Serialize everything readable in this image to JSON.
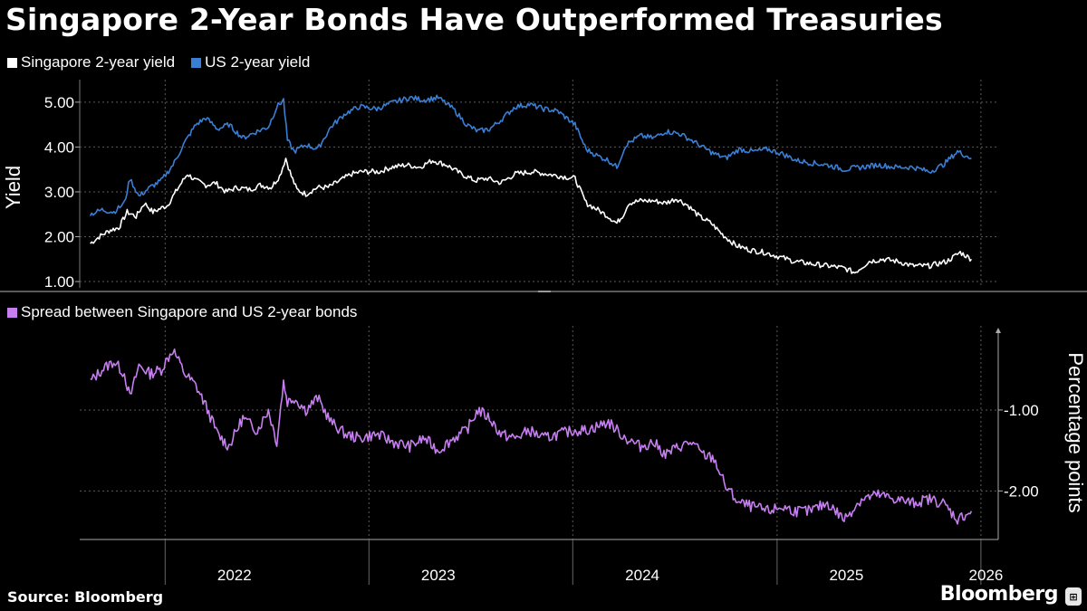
{
  "title": "Singapore 2-Year Bonds Have Outperformed Treasuries",
  "source": "Source: Bloomberg",
  "brand": "Bloomberg",
  "colors": {
    "background": "#000000",
    "singapore": "#ffffff",
    "us": "#3a7fd6",
    "spread": "#c77ef0",
    "grid": "#555555"
  },
  "chart_data": [
    {
      "type": "line",
      "ylabel": "Yield",
      "ylim": [
        0.9,
        5.3
      ],
      "yticks": [
        "5.00",
        "4.00",
        "3.00",
        "2.00",
        "1.00"
      ],
      "ytick_values": [
        5,
        4,
        3,
        2,
        1
      ],
      "grid": true,
      "legend_position": "top-left",
      "x_range": [
        "2021-08",
        "2026-02"
      ],
      "series": [
        {
          "name": "Singapore 2-year yield",
          "color": "#ffffff",
          "points": [
            [
              "2021-08-20",
              1.85
            ],
            [
              "2021-09-05",
              2.0
            ],
            [
              "2021-09-25",
              2.15
            ],
            [
              "2021-10-10",
              2.2
            ],
            [
              "2021-10-25",
              2.55
            ],
            [
              "2021-11-10",
              2.45
            ],
            [
              "2021-11-25",
              2.75
            ],
            [
              "2021-12-10",
              2.55
            ],
            [
              "2022-01-05",
              2.7
            ],
            [
              "2022-01-25",
              3.1
            ],
            [
              "2022-02-10",
              3.4
            ],
            [
              "2022-02-25",
              3.25
            ],
            [
              "2022-03-15",
              3.15
            ],
            [
              "2022-04-01",
              3.2
            ],
            [
              "2022-04-20",
              3.0
            ],
            [
              "2022-05-10",
              3.1
            ],
            [
              "2022-06-01",
              3.05
            ],
            [
              "2022-06-20",
              3.15
            ],
            [
              "2022-07-10",
              3.1
            ],
            [
              "2022-07-25",
              3.35
            ],
            [
              "2022-08-05",
              3.75
            ],
            [
              "2022-08-15",
              3.35
            ],
            [
              "2022-08-25",
              3.05
            ],
            [
              "2022-09-10",
              2.95
            ],
            [
              "2022-10-01",
              3.1
            ],
            [
              "2022-10-20",
              3.1
            ],
            [
              "2022-11-10",
              3.25
            ],
            [
              "2022-12-01",
              3.4
            ],
            [
              "2022-12-20",
              3.45
            ],
            [
              "2023-01-20",
              3.45
            ],
            [
              "2023-02-10",
              3.55
            ],
            [
              "2023-03-10",
              3.6
            ],
            [
              "2023-04-01",
              3.55
            ],
            [
              "2023-04-25",
              3.7
            ],
            [
              "2023-05-20",
              3.6
            ],
            [
              "2023-06-15",
              3.4
            ],
            [
              "2023-07-10",
              3.25
            ],
            [
              "2023-08-01",
              3.3
            ],
            [
              "2023-08-25",
              3.2
            ],
            [
              "2023-09-20",
              3.4
            ],
            [
              "2023-10-20",
              3.45
            ],
            [
              "2023-11-15",
              3.4
            ],
            [
              "2023-12-10",
              3.35
            ],
            [
              "2024-01-05",
              3.3
            ],
            [
              "2024-01-25",
              2.75
            ],
            [
              "2024-02-15",
              2.6
            ],
            [
              "2024-03-05",
              2.45
            ],
            [
              "2024-03-20",
              2.3
            ],
            [
              "2024-04-01",
              2.5
            ],
            [
              "2024-04-10",
              2.75
            ],
            [
              "2024-05-01",
              2.8
            ],
            [
              "2024-05-25",
              2.8
            ],
            [
              "2024-06-15",
              2.75
            ],
            [
              "2024-07-05",
              2.85
            ],
            [
              "2024-07-25",
              2.7
            ],
            [
              "2024-08-15",
              2.45
            ],
            [
              "2024-09-05",
              2.3
            ],
            [
              "2024-09-25",
              2.05
            ],
            [
              "2024-10-20",
              1.8
            ],
            [
              "2024-11-15",
              1.7
            ],
            [
              "2024-12-10",
              1.65
            ],
            [
              "2025-01-05",
              1.55
            ],
            [
              "2025-02-01",
              1.45
            ],
            [
              "2025-03-01",
              1.4
            ],
            [
              "2025-04-01",
              1.35
            ],
            [
              "2025-05-01",
              1.3
            ],
            [
              "2025-05-20",
              1.2
            ],
            [
              "2025-06-15",
              1.45
            ],
            [
              "2025-07-10",
              1.5
            ],
            [
              "2025-08-05",
              1.45
            ],
            [
              "2025-09-01",
              1.35
            ],
            [
              "2025-10-01",
              1.35
            ],
            [
              "2025-11-01",
              1.45
            ],
            [
              "2025-11-25",
              1.65
            ],
            [
              "2025-12-15",
              1.5
            ]
          ]
        },
        {
          "name": "US 2-year yield",
          "color": "#3a7fd6",
          "points": [
            [
              "2021-08-20",
              2.5
            ],
            [
              "2021-09-10",
              2.6
            ],
            [
              "2021-10-01",
              2.55
            ],
            [
              "2021-10-20",
              2.75
            ],
            [
              "2021-10-30",
              3.3
            ],
            [
              "2021-11-15",
              2.9
            ],
            [
              "2021-12-05",
              3.1
            ],
            [
              "2021-12-25",
              3.25
            ],
            [
              "2022-01-15",
              3.6
            ],
            [
              "2022-02-05",
              4.1
            ],
            [
              "2022-02-25",
              4.5
            ],
            [
              "2022-03-15",
              4.65
            ],
            [
              "2022-04-05",
              4.4
            ],
            [
              "2022-04-25",
              4.5
            ],
            [
              "2022-05-20",
              4.2
            ],
            [
              "2022-06-15",
              4.35
            ],
            [
              "2022-07-05",
              4.45
            ],
            [
              "2022-07-20",
              4.9
            ],
            [
              "2022-08-01",
              5.05
            ],
            [
              "2022-08-08",
              4.15
            ],
            [
              "2022-08-20",
              3.9
            ],
            [
              "2022-09-10",
              4.05
            ],
            [
              "2022-10-01",
              3.95
            ],
            [
              "2022-10-25",
              4.45
            ],
            [
              "2022-11-20",
              4.75
            ],
            [
              "2022-12-15",
              4.9
            ],
            [
              "2023-01-15",
              4.85
            ],
            [
              "2023-02-15",
              5.0
            ],
            [
              "2023-03-15",
              5.1
            ],
            [
              "2023-04-10",
              5.05
            ],
            [
              "2023-05-05",
              5.1
            ],
            [
              "2023-06-01",
              4.85
            ],
            [
              "2023-06-25",
              4.5
            ],
            [
              "2023-07-15",
              4.35
            ],
            [
              "2023-08-05",
              4.4
            ],
            [
              "2023-08-25",
              4.6
            ],
            [
              "2023-09-20",
              4.9
            ],
            [
              "2023-10-15",
              4.95
            ],
            [
              "2023-11-10",
              4.85
            ],
            [
              "2023-12-05",
              4.8
            ],
            [
              "2024-01-05",
              4.5
            ],
            [
              "2024-01-25",
              3.95
            ],
            [
              "2024-02-15",
              3.8
            ],
            [
              "2024-03-05",
              3.7
            ],
            [
              "2024-03-20",
              3.55
            ],
            [
              "2024-04-05",
              4.05
            ],
            [
              "2024-05-01",
              4.25
            ],
            [
              "2024-05-25",
              4.2
            ],
            [
              "2024-06-15",
              4.35
            ],
            [
              "2024-07-10",
              4.3
            ],
            [
              "2024-08-01",
              4.15
            ],
            [
              "2024-08-20",
              4.0
            ],
            [
              "2024-09-10",
              3.85
            ],
            [
              "2024-10-01",
              3.75
            ],
            [
              "2024-10-25",
              3.95
            ],
            [
              "2024-11-20",
              3.9
            ],
            [
              "2024-12-15",
              3.95
            ],
            [
              "2025-01-10",
              3.85
            ],
            [
              "2025-02-05",
              3.7
            ],
            [
              "2025-03-01",
              3.65
            ],
            [
              "2025-04-01",
              3.6
            ],
            [
              "2025-05-01",
              3.5
            ],
            [
              "2025-06-01",
              3.55
            ],
            [
              "2025-07-01",
              3.6
            ],
            [
              "2025-08-01",
              3.55
            ],
            [
              "2025-09-01",
              3.55
            ],
            [
              "2025-10-01",
              3.45
            ],
            [
              "2025-10-25",
              3.6
            ],
            [
              "2025-11-20",
              3.9
            ],
            [
              "2025-12-15",
              3.75
            ]
          ]
        }
      ]
    },
    {
      "type": "line",
      "ylabel": "Percentage points",
      "ylim": [
        -2.6,
        -0.05
      ],
      "yticks": [
        "-1.00",
        "-2.00"
      ],
      "ytick_values": [
        -1,
        -2
      ],
      "grid": true,
      "legend_position": "top-left",
      "x_range": [
        "2021-08",
        "2026-02"
      ],
      "xticks": [
        "2022",
        "2023",
        "2024",
        "2025",
        "2026"
      ],
      "series": [
        {
          "name": "Spread between Singapore and US 2-year bonds",
          "color": "#c77ef0",
          "points": [
            [
              "2021-08-20",
              -0.65
            ],
            [
              "2021-09-10",
              -0.5
            ],
            [
              "2021-10-01",
              -0.4
            ],
            [
              "2021-10-20",
              -0.55
            ],
            [
              "2021-10-30",
              -0.85
            ],
            [
              "2021-11-15",
              -0.45
            ],
            [
              "2021-12-05",
              -0.55
            ],
            [
              "2021-12-25",
              -0.5
            ],
            [
              "2022-01-15",
              -0.25
            ],
            [
              "2022-02-05",
              -0.55
            ],
            [
              "2022-02-25",
              -0.7
            ],
            [
              "2022-03-15",
              -0.95
            ],
            [
              "2022-04-05",
              -1.3
            ],
            [
              "2022-04-25",
              -1.45
            ],
            [
              "2022-05-20",
              -1.1
            ],
            [
              "2022-06-15",
              -1.25
            ],
            [
              "2022-07-05",
              -1.0
            ],
            [
              "2022-07-20",
              -1.4
            ],
            [
              "2022-08-01",
              -0.65
            ],
            [
              "2022-08-08",
              -0.9
            ],
            [
              "2022-08-20",
              -0.85
            ],
            [
              "2022-09-10",
              -1.0
            ],
            [
              "2022-10-01",
              -0.85
            ],
            [
              "2022-10-25",
              -1.15
            ],
            [
              "2022-11-20",
              -1.3
            ],
            [
              "2022-12-15",
              -1.35
            ],
            [
              "2023-01-15",
              -1.3
            ],
            [
              "2023-02-15",
              -1.4
            ],
            [
              "2023-03-15",
              -1.45
            ],
            [
              "2023-04-10",
              -1.35
            ],
            [
              "2023-05-05",
              -1.5
            ],
            [
              "2023-06-01",
              -1.35
            ],
            [
              "2023-06-25",
              -1.25
            ],
            [
              "2023-07-15",
              -1.0
            ],
            [
              "2023-08-05",
              -1.1
            ],
            [
              "2023-08-25",
              -1.3
            ],
            [
              "2023-09-20",
              -1.35
            ],
            [
              "2023-10-15",
              -1.25
            ],
            [
              "2023-11-10",
              -1.35
            ],
            [
              "2023-12-05",
              -1.3
            ],
            [
              "2024-01-05",
              -1.25
            ],
            [
              "2024-01-25",
              -1.25
            ],
            [
              "2024-02-15",
              -1.2
            ],
            [
              "2024-03-05",
              -1.15
            ],
            [
              "2024-03-20",
              -1.25
            ],
            [
              "2024-04-05",
              -1.35
            ],
            [
              "2024-05-01",
              -1.45
            ],
            [
              "2024-05-25",
              -1.4
            ],
            [
              "2024-06-15",
              -1.55
            ],
            [
              "2024-07-10",
              -1.45
            ],
            [
              "2024-08-01",
              -1.4
            ],
            [
              "2024-08-20",
              -1.55
            ],
            [
              "2024-09-10",
              -1.6
            ],
            [
              "2024-10-01",
              -1.95
            ],
            [
              "2024-10-25",
              -2.15
            ],
            [
              "2024-11-20",
              -2.2
            ],
            [
              "2024-12-15",
              -2.25
            ],
            [
              "2025-01-10",
              -2.2
            ],
            [
              "2025-02-05",
              -2.25
            ],
            [
              "2025-03-01",
              -2.25
            ],
            [
              "2025-04-01",
              -2.15
            ],
            [
              "2025-05-01",
              -2.35
            ],
            [
              "2025-06-01",
              -2.1
            ],
            [
              "2025-07-01",
              -2.05
            ],
            [
              "2025-08-01",
              -2.1
            ],
            [
              "2025-09-01",
              -2.15
            ],
            [
              "2025-10-01",
              -2.1
            ],
            [
              "2025-10-25",
              -2.15
            ],
            [
              "2025-11-20",
              -2.35
            ],
            [
              "2025-12-15",
              -2.25
            ]
          ]
        }
      ]
    }
  ]
}
